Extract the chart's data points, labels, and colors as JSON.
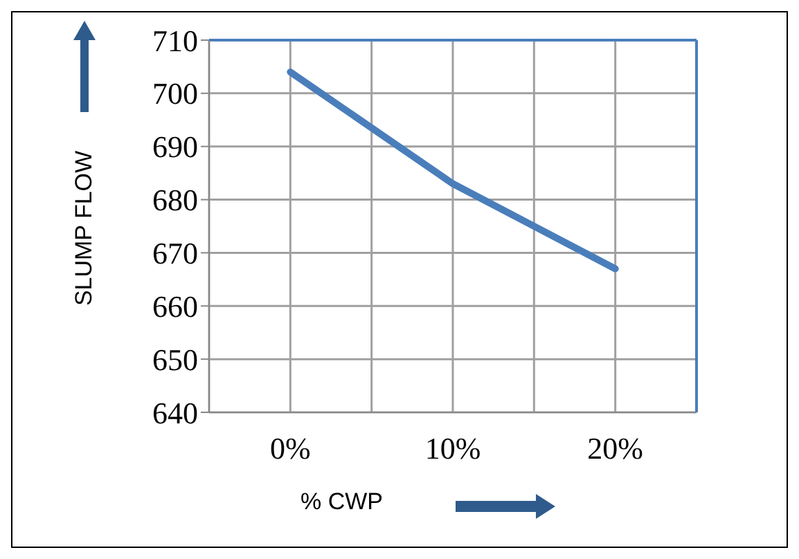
{
  "chart_data": {
    "type": "line",
    "xlabel": "% CWP",
    "ylabel": "SLUMP FLOW",
    "categories": [
      "0%",
      "10%",
      "20%"
    ],
    "series": [
      {
        "color": "#4a7ebb",
        "values": [
          704,
          683,
          667
        ]
      }
    ],
    "ylim": [
      640,
      710
    ],
    "yticks": [
      640,
      650,
      660,
      670,
      680,
      690,
      700,
      710
    ],
    "grid": true,
    "legend": false,
    "marker": "none",
    "line_style": "solid"
  }
}
